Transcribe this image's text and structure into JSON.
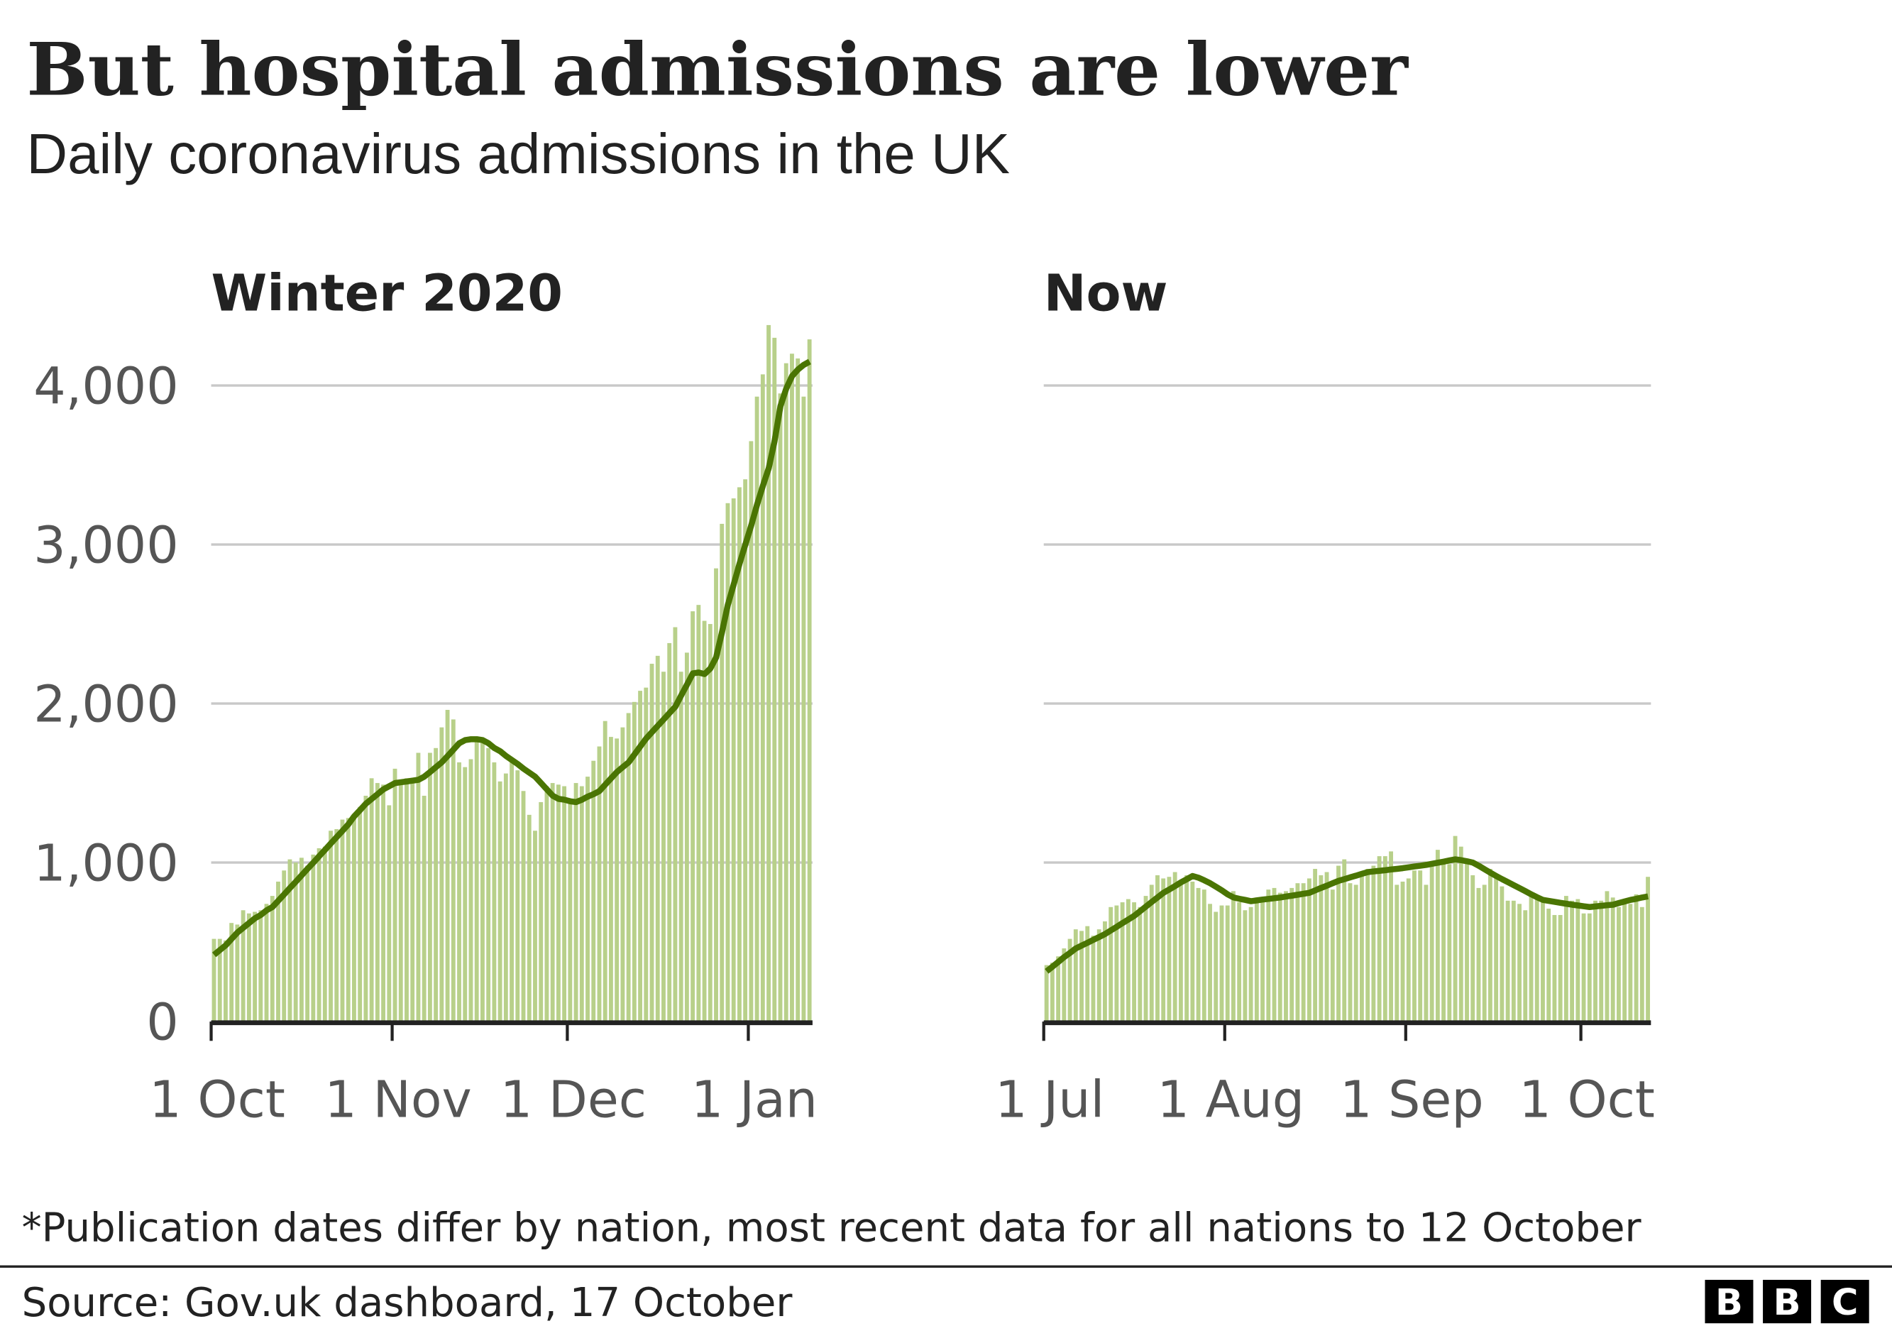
{
  "title": "But hospital admissions are lower",
  "subtitle": "Daily coronavirus admissions in the UK",
  "footnote": "*Publication dates differ by nation, most recent data for all nations to 12 October",
  "source": "Source: Gov.uk dashboard, 17 October",
  "logo": [
    "B",
    "B",
    "C"
  ],
  "colors": {
    "bars": "#b8d08a",
    "average_line": "#4a7503",
    "grid": "#c8c8c8",
    "axis": "#222222"
  },
  "chart_data": [
    {
      "type": "bar",
      "panel_title": "Winter 2020",
      "start_date": "2020-10-01",
      "xticks": [
        "1 Oct",
        "1 Nov",
        "1 Dec",
        "1 Jan"
      ],
      "xtick_days": [
        0,
        31,
        61,
        92
      ],
      "yticks": [
        "0",
        "1,000",
        "2,000",
        "3,000",
        "4,000"
      ],
      "ytick_values": [
        0,
        1000,
        2000,
        3000,
        4000
      ],
      "ylim": [
        0,
        4400
      ],
      "grid": true,
      "values": [
        520,
        520,
        510,
        620,
        610,
        700,
        680,
        690,
        700,
        740,
        790,
        880,
        950,
        1020,
        1000,
        1030,
        980,
        1050,
        1090,
        1100,
        1200,
        1210,
        1270,
        1280,
        1300,
        1350,
        1420,
        1530,
        1500,
        1490,
        1360,
        1590,
        1500,
        1530,
        1510,
        1690,
        1420,
        1690,
        1720,
        1850,
        1960,
        1900,
        1630,
        1600,
        1650,
        1760,
        1780,
        1720,
        1630,
        1510,
        1560,
        1660,
        1580,
        1450,
        1300,
        1200,
        1380,
        1480,
        1500,
        1490,
        1480,
        1380,
        1500,
        1480,
        1540,
        1640,
        1730,
        1890,
        1790,
        1780,
        1850,
        1940,
        2010,
        2080,
        2100,
        2250,
        2300,
        2200,
        2380,
        2480,
        2200,
        2320,
        2580,
        2620,
        2520,
        2500,
        2850,
        3130,
        3260,
        3290,
        3360,
        3410,
        3650,
        3930,
        4070,
        4380,
        4300,
        3950,
        4140,
        4200,
        4170,
        3930,
        4290
      ],
      "average": [
        420,
        450,
        480,
        520,
        560,
        590,
        620,
        650,
        670,
        700,
        720,
        760,
        800,
        840,
        880,
        920,
        960,
        1000,
        1040,
        1080,
        1120,
        1160,
        1200,
        1240,
        1290,
        1330,
        1370,
        1400,
        1430,
        1460,
        1480,
        1500,
        1505,
        1510,
        1515,
        1520,
        1540,
        1570,
        1600,
        1630,
        1670,
        1710,
        1750,
        1770,
        1775,
        1775,
        1770,
        1750,
        1720,
        1700,
        1670,
        1645,
        1620,
        1590,
        1565,
        1540,
        1500,
        1460,
        1420,
        1400,
        1395,
        1385,
        1380,
        1395,
        1415,
        1430,
        1450,
        1490,
        1530,
        1570,
        1600,
        1630,
        1680,
        1730,
        1780,
        1820,
        1860,
        1900,
        1940,
        1980,
        2050,
        2120,
        2190,
        2195,
        2185,
        2220,
        2290,
        2450,
        2620,
        2750,
        2880,
        3000,
        3120,
        3250,
        3370,
        3480,
        3650,
        3870,
        3980,
        4060,
        4100,
        4130,
        4150
      ]
    },
    {
      "type": "bar",
      "panel_title": "Now",
      "start_date": "2021-07-01",
      "xticks": [
        "1 Jul",
        "1 Aug",
        "1 Sep",
        "1 Oct"
      ],
      "xtick_days": [
        0,
        31,
        62,
        92
      ],
      "yticks": [
        "0",
        "1,000",
        "2,000",
        "3,000",
        "4,000"
      ],
      "ytick_values": [
        0,
        1000,
        2000,
        3000,
        4000
      ],
      "ylim": [
        0,
        4400
      ],
      "grid": true,
      "values": [
        355,
        370,
        410,
        460,
        520,
        580,
        570,
        600,
        540,
        580,
        630,
        720,
        730,
        750,
        770,
        750,
        720,
        790,
        860,
        920,
        900,
        910,
        940,
        880,
        920,
        880,
        840,
        830,
        740,
        690,
        730,
        730,
        820,
        750,
        700,
        720,
        780,
        760,
        830,
        840,
        810,
        820,
        840,
        870,
        870,
        900,
        960,
        920,
        940,
        830,
        980,
        1020,
        870,
        860,
        920,
        960,
        980,
        1040,
        1040,
        1070,
        860,
        880,
        900,
        950,
        950,
        860,
        980,
        1080,
        1010,
        990,
        1167,
        1100,
        1000,
        920,
        840,
        860,
        960,
        920,
        850,
        760,
        760,
        740,
        700,
        810,
        780,
        760,
        710,
        670,
        670,
        790,
        760,
        770,
        680,
        680,
        760,
        760,
        820,
        780,
        720,
        760,
        740,
        800,
        720,
        910
      ],
      "average": [
        316,
        345,
        375,
        405,
        432,
        460,
        478,
        496,
        514,
        532,
        550,
        573,
        596,
        619,
        642,
        665,
        694,
        723,
        752,
        781,
        810,
        830,
        852,
        875,
        895,
        915,
        905,
        888,
        870,
        848,
        825,
        800,
        780,
        772,
        765,
        757,
        762,
        767,
        771,
        776,
        780,
        786,
        792,
        798,
        804,
        810,
        825,
        840,
        855,
        870,
        885,
        896,
        907,
        918,
        929,
        940,
        944,
        948,
        952,
        956,
        960,
        965,
        970,
        975,
        980,
        985,
        992,
        999,
        1006,
        1013,
        1020,
        1015,
        1008,
        1000,
        980,
        958,
        936,
        915,
        896,
        877,
        858,
        839,
        820,
        800,
        782,
        765,
        759,
        753,
        747,
        741,
        735,
        730,
        725,
        720,
        724,
        728,
        732,
        735,
        745,
        755,
        765,
        772,
        780,
        787
      ]
    }
  ]
}
